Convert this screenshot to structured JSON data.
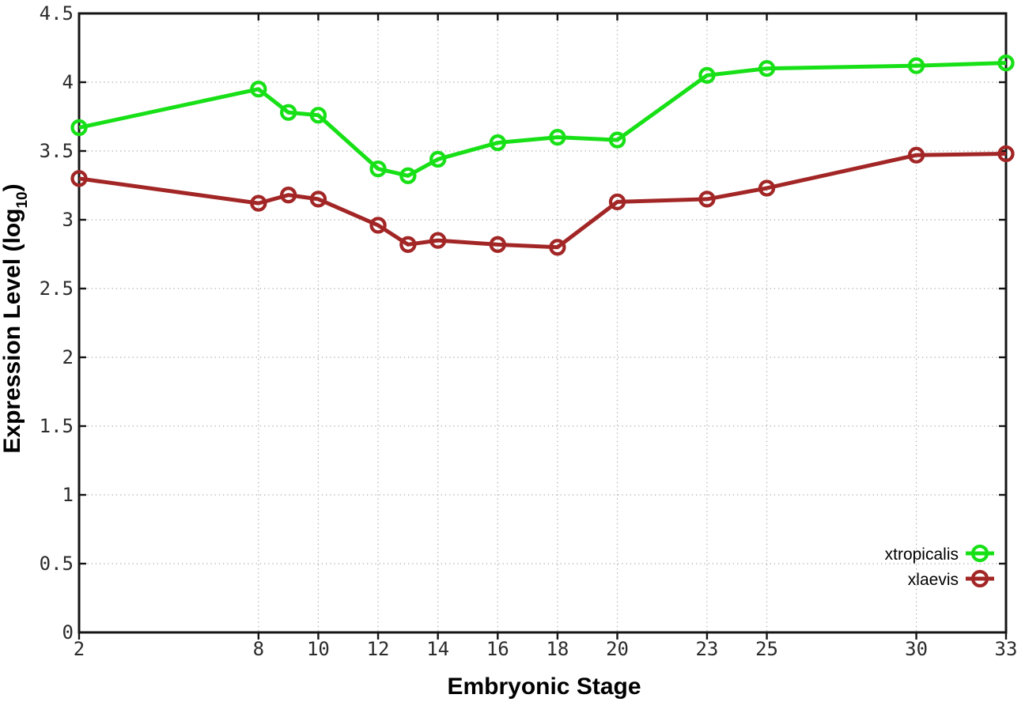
{
  "chart_data": {
    "type": "line",
    "title": "",
    "xlabel": "Embryonic Stage",
    "ylabel": "Expression Level (log10)",
    "ylabel_parts": {
      "main": "Expression Level (log",
      "sub": "10",
      "close": ")"
    },
    "xlim": [
      2,
      33
    ],
    "ylim": [
      0,
      4.5
    ],
    "grid": true,
    "legend_position": "bottom-right",
    "x": [
      2,
      8,
      9,
      10,
      12,
      13,
      14,
      16,
      18,
      20,
      23,
      25,
      30,
      33
    ],
    "x_tick_values": [
      2,
      8,
      10,
      12,
      14,
      16,
      18,
      20,
      23,
      25,
      30,
      33
    ],
    "x_tick_labels": [
      "2",
      "8",
      "10",
      "12",
      "14",
      "16",
      "18",
      "20",
      "23",
      "25",
      "30",
      "33"
    ],
    "y_tick_values": [
      0,
      0.5,
      1,
      1.5,
      2,
      2.5,
      3,
      3.5,
      4,
      4.5
    ],
    "y_tick_labels": [
      "0",
      "0.5",
      "1",
      "1.5",
      "2",
      "2.5",
      "3",
      "3.5",
      "4",
      "4.5"
    ],
    "x_grid_values": [
      8,
      10,
      12,
      14,
      16,
      18,
      20,
      23,
      25,
      30
    ],
    "y_grid_values": [
      0.5,
      1,
      1.5,
      2,
      2.5,
      3,
      3.5,
      4
    ],
    "series": [
      {
        "name": "xtropicalis",
        "color": "#17e017",
        "values": [
          3.67,
          3.95,
          3.78,
          3.76,
          3.37,
          3.32,
          3.44,
          3.56,
          3.6,
          3.58,
          4.05,
          4.1,
          4.12,
          4.14
        ]
      },
      {
        "name": "xlaevis",
        "color": "#a32626",
        "values": [
          3.3,
          3.12,
          3.18,
          3.15,
          2.96,
          2.82,
          2.85,
          2.82,
          2.8,
          3.13,
          3.15,
          3.23,
          3.47,
          3.48
        ]
      }
    ]
  }
}
